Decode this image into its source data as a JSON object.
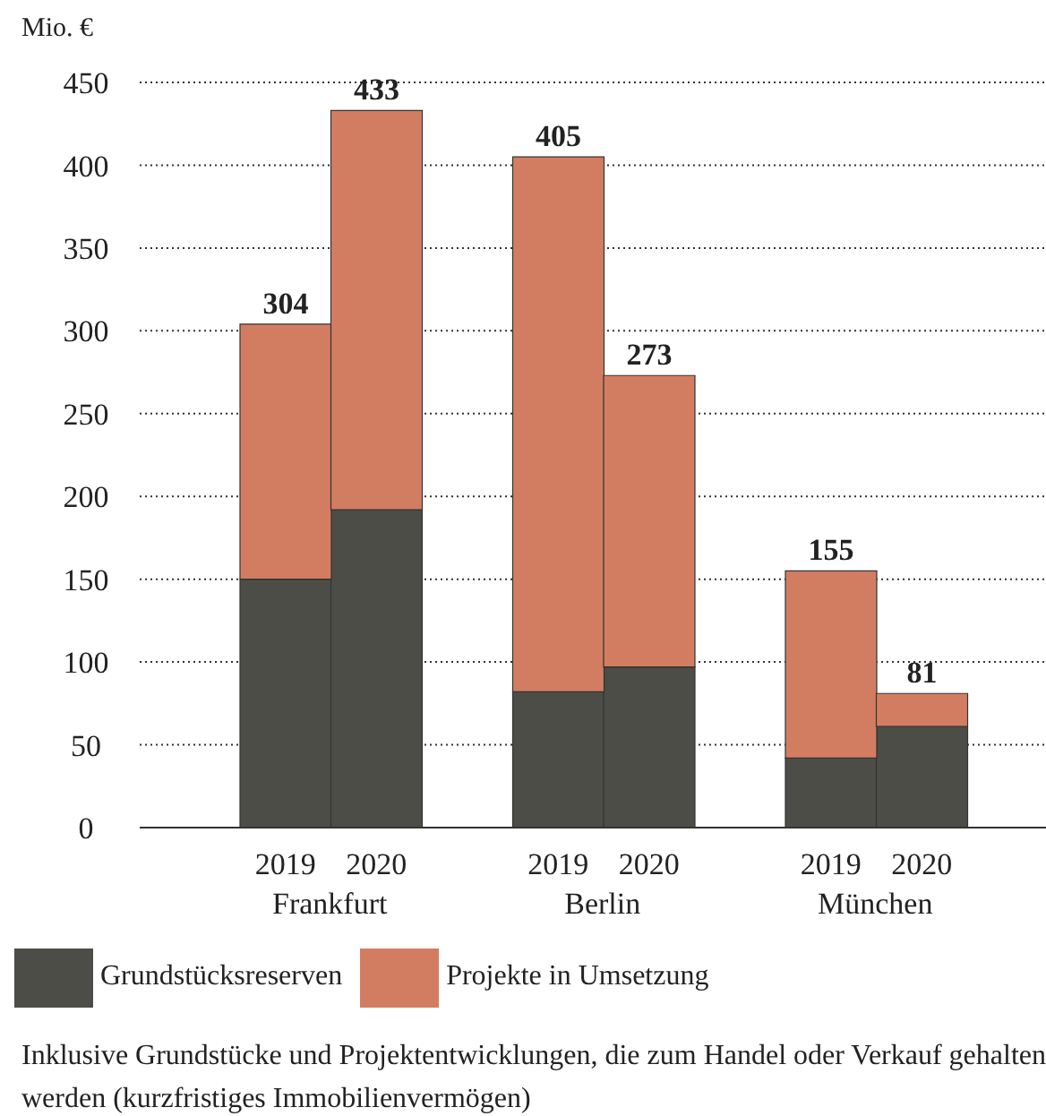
{
  "chart_data": {
    "type": "bar",
    "stacked": true,
    "ylabel": "Mio. €",
    "categories": [
      "2019",
      "2020",
      null,
      "2019",
      "2020",
      null,
      "2019",
      "2020"
    ],
    "series": [
      {
        "name": "Grundstücksreserven",
        "color": "#4d4d48",
        "values": [
          150,
          192,
          null,
          82,
          97,
          null,
          42,
          61
        ]
      },
      {
        "name": "Projekte in Umsetzung",
        "color": "#d27d62",
        "values": [
          154,
          241,
          null,
          323,
          176,
          null,
          113,
          20
        ]
      }
    ],
    "totals": [
      "304",
      "433",
      null,
      "405",
      "273",
      null,
      "155",
      "81"
    ],
    "ylim": [
      0,
      450
    ],
    "yticks": [
      0,
      50,
      100,
      150,
      200,
      250,
      300,
      350,
      400,
      450
    ],
    "grid": "y",
    "legend": "bottom",
    "annotations": [
      "Frankfurt",
      "Berlin",
      "München",
      "Inklusive Grundstücke und Projektentwicklungen, die zum Handel oder Verkauf gehalten werden (kurzfristiges Immobilienvermögen)"
    ]
  }
}
